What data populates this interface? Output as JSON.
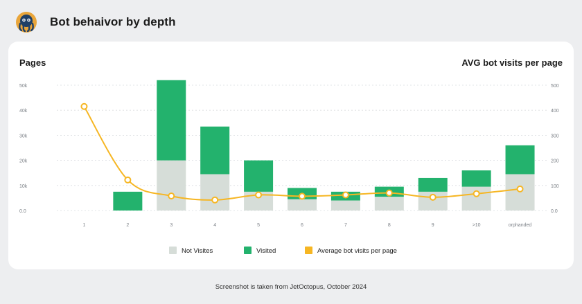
{
  "header": {
    "title": "Bot behaivor by depth"
  },
  "footer": {
    "note": "Screenshot is taken from JetOctopus, October 2024"
  },
  "colors": {
    "not_visited": "#d6ddd8",
    "visited": "#23b26d",
    "avg_line": "#f6b623",
    "grid": "#d9dcdf",
    "tick": "#7a7f85"
  },
  "chart_data": {
    "type": "bar",
    "stacked": true,
    "categories": [
      "1",
      "2",
      "3",
      "4",
      "5",
      "6",
      "7",
      "8",
      "9",
      ">10",
      "orphanded"
    ],
    "left_axis_title": "Pages",
    "right_axis_title": "AVG bot visits per page",
    "left_ticks": [
      "0.0",
      "10k",
      "20k",
      "30k",
      "40k",
      "50k"
    ],
    "right_ticks": [
      "0.0",
      "100",
      "200",
      "300",
      "400",
      "500"
    ],
    "ylim_left": [
      0,
      50000
    ],
    "ylim_right": [
      0,
      500
    ],
    "grid": true,
    "legend_position": "bottom-center",
    "series": [
      {
        "name": "Not Visites",
        "kind": "bar",
        "axis": "left",
        "values": [
          0,
          0,
          20000,
          14500,
          7500,
          4500,
          4000,
          5500,
          7500,
          9500,
          14500
        ]
      },
      {
        "name": "Visited",
        "kind": "bar",
        "axis": "left",
        "values": [
          0,
          7500,
          32000,
          19000,
          12500,
          4500,
          3500,
          4000,
          5500,
          6500,
          11500
        ]
      },
      {
        "name": "Average bot visits per page",
        "kind": "line",
        "axis": "right",
        "values": [
          415,
          122,
          58,
          42,
          62,
          57,
          62,
          70,
          53,
          67,
          86
        ]
      }
    ]
  }
}
